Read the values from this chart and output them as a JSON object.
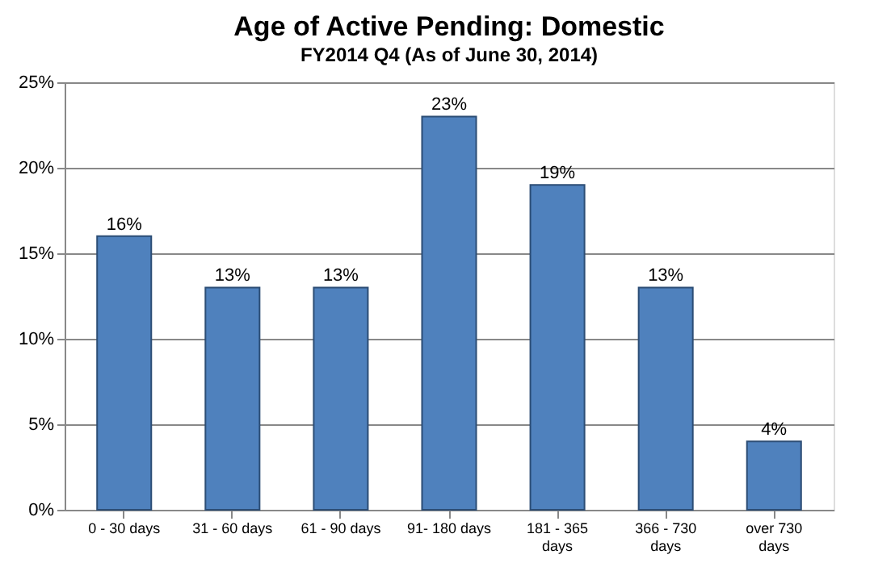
{
  "chart_data": {
    "type": "bar",
    "title": "Age of Active Pending: Domestic",
    "subtitle": "FY2014 Q4 (As of June 30, 2014)",
    "categories": [
      "0 - 30 days",
      "31 - 60 days",
      "61 - 90 days",
      "91- 180 days",
      "181 - 365 days",
      "366 - 730 days",
      "over 730 days"
    ],
    "values": [
      16,
      13,
      13,
      23,
      19,
      13,
      4
    ],
    "color": "#4f81bd",
    "ylim": [
      0,
      25
    ],
    "yticks": [
      {
        "value": 0,
        "label": "0%"
      },
      {
        "value": 5,
        "label": "5%"
      },
      {
        "value": 10,
        "label": "10%"
      },
      {
        "value": 15,
        "label": "15%"
      },
      {
        "value": 20,
        "label": "20%"
      },
      {
        "value": 25,
        "label": "25%"
      }
    ],
    "value_labels": [
      "16%",
      "13%",
      "13%",
      "23%",
      "19%",
      "13%",
      "4%"
    ],
    "grid": "y"
  }
}
